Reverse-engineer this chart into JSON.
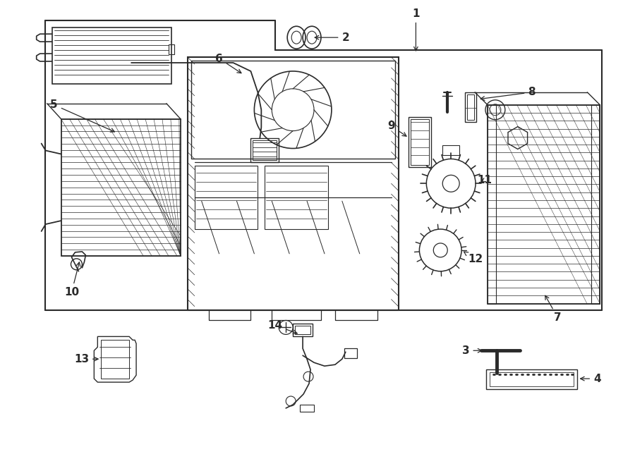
{
  "bg_color": "#ffffff",
  "line_color": "#2a2a2a",
  "fig_width": 9.0,
  "fig_height": 6.61,
  "dpi": 100,
  "font_size": 11,
  "lw": 1.0
}
